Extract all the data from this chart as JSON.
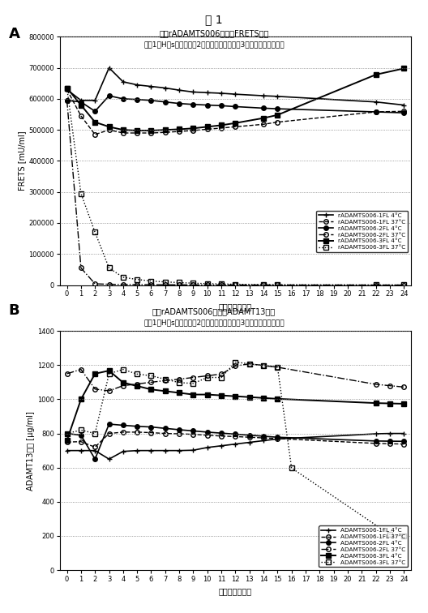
{
  "fig_title": "図 1",
  "panel_A": {
    "label": "A",
    "title": "液体rADAMTS006製剤のFRETS活性",
    "subtitle": "（－1：Hｉs緩衝液；－2：リン酸緩衝液；－3：クエン酸緩衝液）",
    "ylabel": "FRETS [mU/ml]",
    "xlabel": "保管期間［週］",
    "ylim": [
      0,
      800000
    ],
    "yticks": [
      0,
      100000,
      200000,
      300000,
      400000,
      500000,
      600000,
      700000,
      800000
    ],
    "ytick_labels": [
      "0",
      "100000",
      "200000",
      "300000",
      "400000",
      "500000",
      "600000",
      "700000",
      "800000"
    ],
    "xticks": [
      0,
      1,
      2,
      3,
      4,
      5,
      6,
      7,
      8,
      9,
      10,
      11,
      12,
      13,
      14,
      15,
      16,
      17,
      18,
      19,
      20,
      21,
      22,
      23,
      24
    ],
    "series": [
      {
        "label": "rADAMTS006-1FL 4°C",
        "x": [
          0,
          1,
          2,
          3,
          4,
          5,
          6,
          7,
          8,
          9,
          10,
          11,
          12,
          14,
          15,
          22,
          24
        ],
        "y": [
          630000,
          595000,
          595000,
          700000,
          655000,
          645000,
          640000,
          635000,
          628000,
          622000,
          620000,
          618000,
          615000,
          610000,
          608000,
          590000,
          580000
        ],
        "color": "#000000",
        "linestyle": "-",
        "marker": "+",
        "linewidth": 1.2,
        "markersize": 5,
        "marker_fill": "full"
      },
      {
        "label": "rADAMTS006-1FL 37°C",
        "x": [
          0,
          1,
          2,
          3,
          4,
          5,
          6,
          7,
          8,
          9,
          10,
          11,
          12,
          14,
          15,
          22,
          24
        ],
        "y": [
          630000,
          545000,
          485000,
          500000,
          490000,
          490000,
          490000,
          492000,
          495000,
          498000,
          502000,
          506000,
          510000,
          518000,
          525000,
          558000,
          560000
        ],
        "color": "#000000",
        "linestyle": "--",
        "marker": "o",
        "linewidth": 1.0,
        "markersize": 4,
        "marker_fill": "none"
      },
      {
        "label": "rADAMTS006-2FL 4°C",
        "x": [
          0,
          1,
          2,
          3,
          4,
          5,
          6,
          7,
          8,
          9,
          10,
          11,
          12,
          14,
          15,
          22,
          24
        ],
        "y": [
          595000,
          590000,
          560000,
          610000,
          600000,
          598000,
          595000,
          590000,
          585000,
          582000,
          580000,
          578000,
          575000,
          570000,
          568000,
          558000,
          555000
        ],
        "color": "#000000",
        "linestyle": "-",
        "marker": "o",
        "linewidth": 1.2,
        "markersize": 4,
        "marker_fill": "full"
      },
      {
        "label": "rADAMTS006-2FL 37°C",
        "x": [
          0,
          1,
          2,
          3,
          4,
          5,
          6,
          7,
          8,
          9,
          10,
          11,
          12,
          14,
          15,
          22,
          24
        ],
        "y": [
          595000,
          55000,
          4000,
          2500,
          1800,
          1500,
          1200,
          1000,
          800,
          600,
          500,
          400,
          350,
          250,
          200,
          80,
          50
        ],
        "color": "#000000",
        "linestyle": "-.",
        "marker": "o",
        "linewidth": 1.0,
        "markersize": 4,
        "marker_fill": "none"
      },
      {
        "label": "rADAMTS006-3FL 4°C",
        "x": [
          0,
          1,
          2,
          3,
          4,
          5,
          6,
          7,
          8,
          9,
          10,
          11,
          12,
          14,
          15,
          22,
          24
        ],
        "y": [
          635000,
          580000,
          525000,
          510000,
          500000,
          498000,
          498000,
          500000,
          502000,
          505000,
          510000,
          515000,
          522000,
          538000,
          548000,
          678000,
          698000
        ],
        "color": "#000000",
        "linestyle": "-",
        "marker": "s",
        "linewidth": 1.4,
        "markersize": 5,
        "marker_fill": "full"
      },
      {
        "label": "rADAMTS006-3FL 37°C",
        "x": [
          0,
          1,
          2,
          3,
          4,
          5,
          6,
          7,
          8,
          9,
          10,
          11,
          12,
          14,
          15,
          22,
          24
        ],
        "y": [
          635000,
          295000,
          170000,
          55000,
          25000,
          18000,
          13000,
          10000,
          8000,
          6000,
          4500,
          3500,
          2500,
          1500,
          800,
          300,
          150
        ],
        "color": "#000000",
        "linestyle": ":",
        "marker": "s",
        "linewidth": 1.0,
        "markersize": 4,
        "marker_fill": "none"
      }
    ]
  },
  "panel_B": {
    "label": "B",
    "title": "液体rADAMTS006製剤のADAMT13括察",
    "subtitle": "（－1：Hｉs緩衝液；－2：リン酸緩衝液；－3：クエン酸緩衝液）",
    "ylabel": "ADAMT13濃度 [μg/ml]",
    "xlabel": "保管期間［週］",
    "ylim": [
      0,
      1400
    ],
    "yticks": [
      0,
      200,
      400,
      600,
      800,
      1000,
      1200,
      1400
    ],
    "xticks": [
      0,
      1,
      2,
      3,
      4,
      5,
      6,
      7,
      8,
      9,
      10,
      11,
      12,
      13,
      14,
      15,
      16,
      17,
      18,
      19,
      20,
      21,
      22,
      23,
      24
    ],
    "series": [
      {
        "label": "ADAMTS006-1FL 4°C",
        "x": [
          0,
          1,
          2,
          3,
          4,
          5,
          6,
          7,
          8,
          9,
          10,
          11,
          12,
          13,
          14,
          15,
          22,
          23,
          24
        ],
        "y": [
          700,
          700,
          700,
          650,
          695,
          700,
          700,
          700,
          700,
          702,
          718,
          728,
          738,
          748,
          758,
          768,
          798,
          800,
          800
        ],
        "color": "#000000",
        "linestyle": "-",
        "marker": "+",
        "linewidth": 1.2,
        "markersize": 5,
        "marker_fill": "full"
      },
      {
        "label": "ADAMTS006-1FL 37°C",
        "x": [
          0,
          1,
          2,
          3,
          4,
          5,
          6,
          7,
          8,
          9,
          10,
          11,
          12,
          13,
          14,
          15,
          22,
          23,
          24
        ],
        "y": [
          750,
          752,
          720,
          800,
          808,
          808,
          805,
          800,
          798,
          795,
          790,
          785,
          782,
          778,
          774,
          770,
          742,
          740,
          738
        ],
        "color": "#000000",
        "linestyle": "--",
        "marker": "o",
        "linewidth": 1.0,
        "markersize": 4,
        "marker_fill": "none"
      },
      {
        "label": "ADAMTS006-2FL 4°C",
        "x": [
          0,
          1,
          2,
          3,
          4,
          5,
          6,
          7,
          8,
          9,
          10,
          11,
          12,
          13,
          14,
          15,
          22,
          23,
          24
        ],
        "y": [
          800,
          790,
          650,
          855,
          848,
          842,
          838,
          830,
          822,
          815,
          808,
          802,
          796,
          790,
          784,
          778,
          756,
          755,
          754
        ],
        "color": "#000000",
        "linestyle": "-",
        "marker": "o",
        "linewidth": 1.2,
        "markersize": 4,
        "marker_fill": "full"
      },
      {
        "label": "ADAMTS006-2FL 37°C",
        "x": [
          0,
          1,
          2,
          3,
          4,
          5,
          6,
          7,
          8,
          9,
          10,
          11,
          12,
          13,
          14,
          15,
          22,
          23,
          24
        ],
        "y": [
          1150,
          1175,
          1060,
          1050,
          1080,
          1090,
          1100,
          1110,
          1118,
          1128,
          1138,
          1148,
          1195,
          1208,
          1198,
          1188,
          1088,
          1080,
          1072
        ],
        "color": "#000000",
        "linestyle": "-.",
        "marker": "o",
        "linewidth": 1.0,
        "markersize": 4,
        "marker_fill": "none"
      },
      {
        "label": "ADAMTS006-3FL 4°C",
        "x": [
          0,
          1,
          2,
          3,
          4,
          5,
          6,
          7,
          8,
          9,
          10,
          11,
          12,
          13,
          14,
          15,
          22,
          23,
          24
        ],
        "y": [
          760,
          1000,
          1150,
          1168,
          1098,
          1078,
          1058,
          1048,
          1038,
          1028,
          1028,
          1023,
          1018,
          1013,
          1008,
          1003,
          978,
          976,
          974
        ],
        "color": "#000000",
        "linestyle": "-",
        "marker": "s",
        "linewidth": 1.4,
        "markersize": 5,
        "marker_fill": "full"
      },
      {
        "label": "ADAMTS006-3FL 37°C",
        "x": [
          0,
          1,
          2,
          3,
          4,
          5,
          6,
          7,
          8,
          9,
          10,
          11,
          12,
          13,
          14,
          15,
          16,
          23,
          24
        ],
        "y": [
          800,
          820,
          800,
          1150,
          1175,
          1148,
          1138,
          1118,
          1098,
          1093,
          1128,
          1128,
          1218,
          1208,
          1198,
          1188,
          598,
          208,
          198
        ],
        "color": "#000000",
        "linestyle": ":",
        "marker": "s",
        "linewidth": 1.0,
        "markersize": 4,
        "marker_fill": "none"
      }
    ]
  }
}
